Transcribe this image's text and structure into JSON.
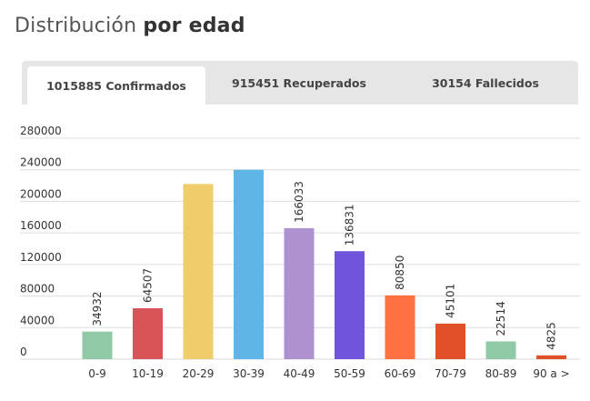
{
  "title": {
    "light": "Distribución",
    "bold": "por edad"
  },
  "tabs": [
    {
      "label": "1015885 Confirmados",
      "active": true
    },
    {
      "label": "915451 Recuperados",
      "active": false
    },
    {
      "label": "30154 Fallecidos",
      "active": false
    }
  ],
  "chart_data": {
    "type": "bar",
    "categories": [
      "0-9",
      "10-19",
      "20-29",
      "30-39",
      "40-49",
      "50-59",
      "60-69",
      "70-79",
      "80-89",
      "90 a >"
    ],
    "values": [
      34932,
      64507,
      222000,
      240000,
      166033,
      136831,
      80850,
      45101,
      22514,
      4825
    ],
    "data_labels": [
      "34932",
      "64507",
      "",
      "",
      "166033",
      "136831",
      "80850",
      "45101",
      "22514",
      "4825"
    ],
    "colors": [
      "#8fc9a5",
      "#d95458",
      "#f1cc6b",
      "#5fb6e6",
      "#ad92cf",
      "#7054db",
      "#ff7140",
      "#e0512a",
      "#8fc9a5",
      "#e0512a"
    ],
    "yticks": [
      "0",
      "40000",
      "80000",
      "120000",
      "160000",
      "200000",
      "240000",
      "280000"
    ],
    "ylim": [
      0,
      280000
    ],
    "grid": true
  }
}
